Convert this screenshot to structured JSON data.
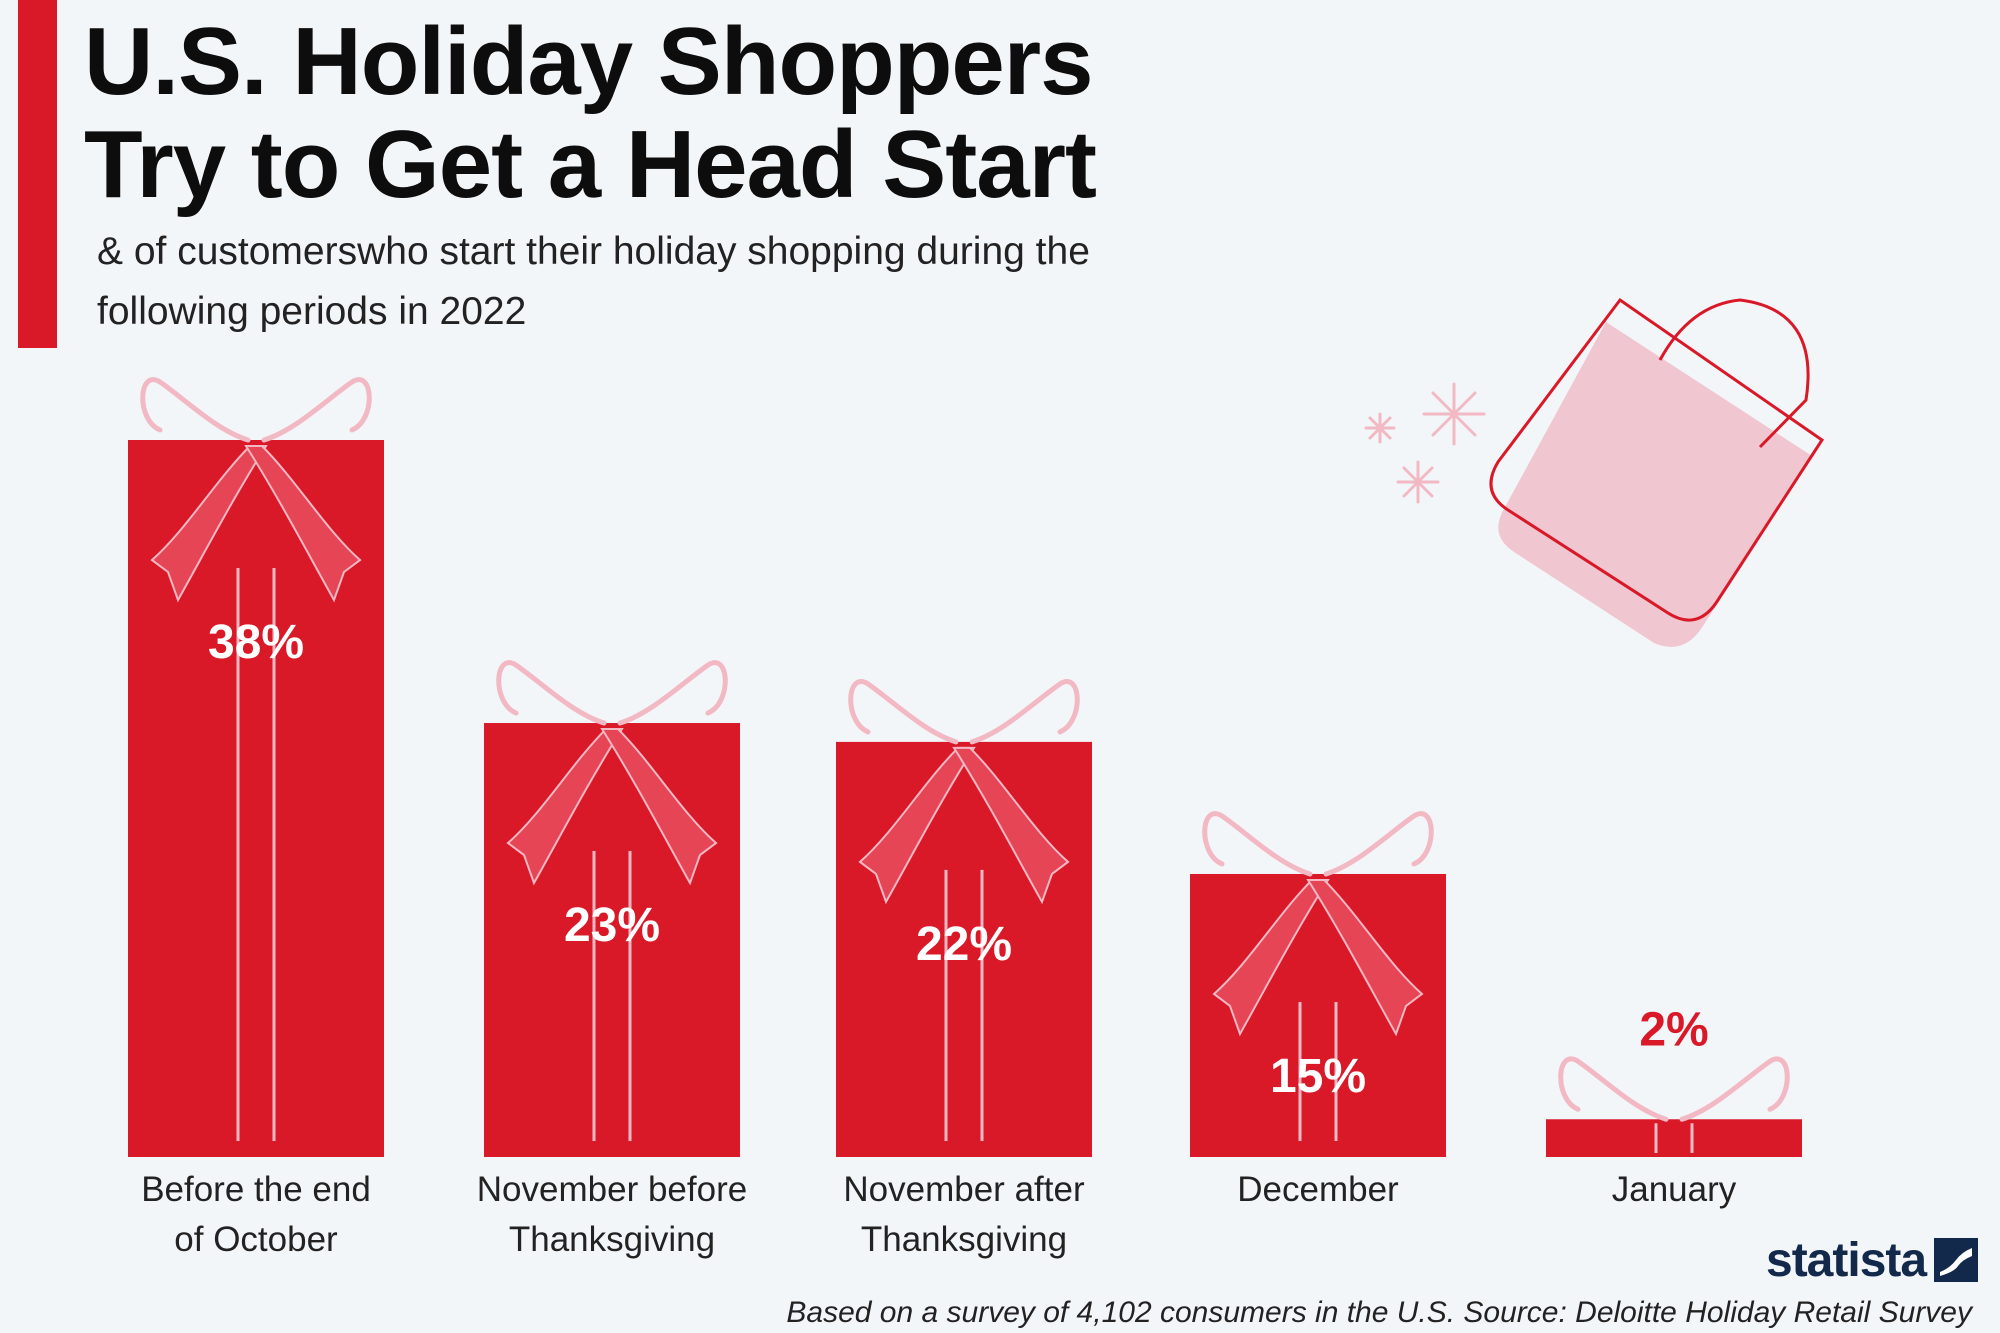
{
  "header": {
    "title": "U.S. Holiday Shoppers\nTry to Get a Head Start",
    "subtitle": "& of customerswho start their holiday shopping during the\nfollowing periods in 2022"
  },
  "colors": {
    "accent": "#d91928",
    "bow_pink": "#f2b8c3",
    "bag_fill": "#f0c6d1",
    "bag_outline": "#d91928",
    "label_dark": "#222222",
    "value_on_bar": "#ffffff",
    "brand": "#13294b"
  },
  "chart_data": {
    "type": "bar",
    "title": "U.S. Holiday Shoppers Try to Get a Head Start",
    "subtitle": "& of customerswho start their holiday shopping during the following periods in 2022",
    "categories": [
      [
        "Before the end",
        "of October"
      ],
      [
        "November before",
        "Thanksgiving"
      ],
      [
        "November after",
        "Thanksgiving"
      ],
      [
        "December"
      ],
      [
        "January"
      ]
    ],
    "values": [
      38,
      23,
      22,
      15,
      2
    ],
    "data_labels": [
      "38%",
      "23%",
      "22%",
      "15%",
      "2%"
    ],
    "unit": "%",
    "ylim": [
      0,
      38
    ],
    "grid": false,
    "legend": "none"
  },
  "decorations": {
    "bar_style": "gift-box",
    "bag_icon": "shopping-bag-icon",
    "sparkle_icon": "sparkle-icon"
  },
  "footer": {
    "brand": "statista",
    "source": "Based on a survey of 4,102 consumers in the U.S. Source: Deloitte Holiday Retail Survey"
  }
}
